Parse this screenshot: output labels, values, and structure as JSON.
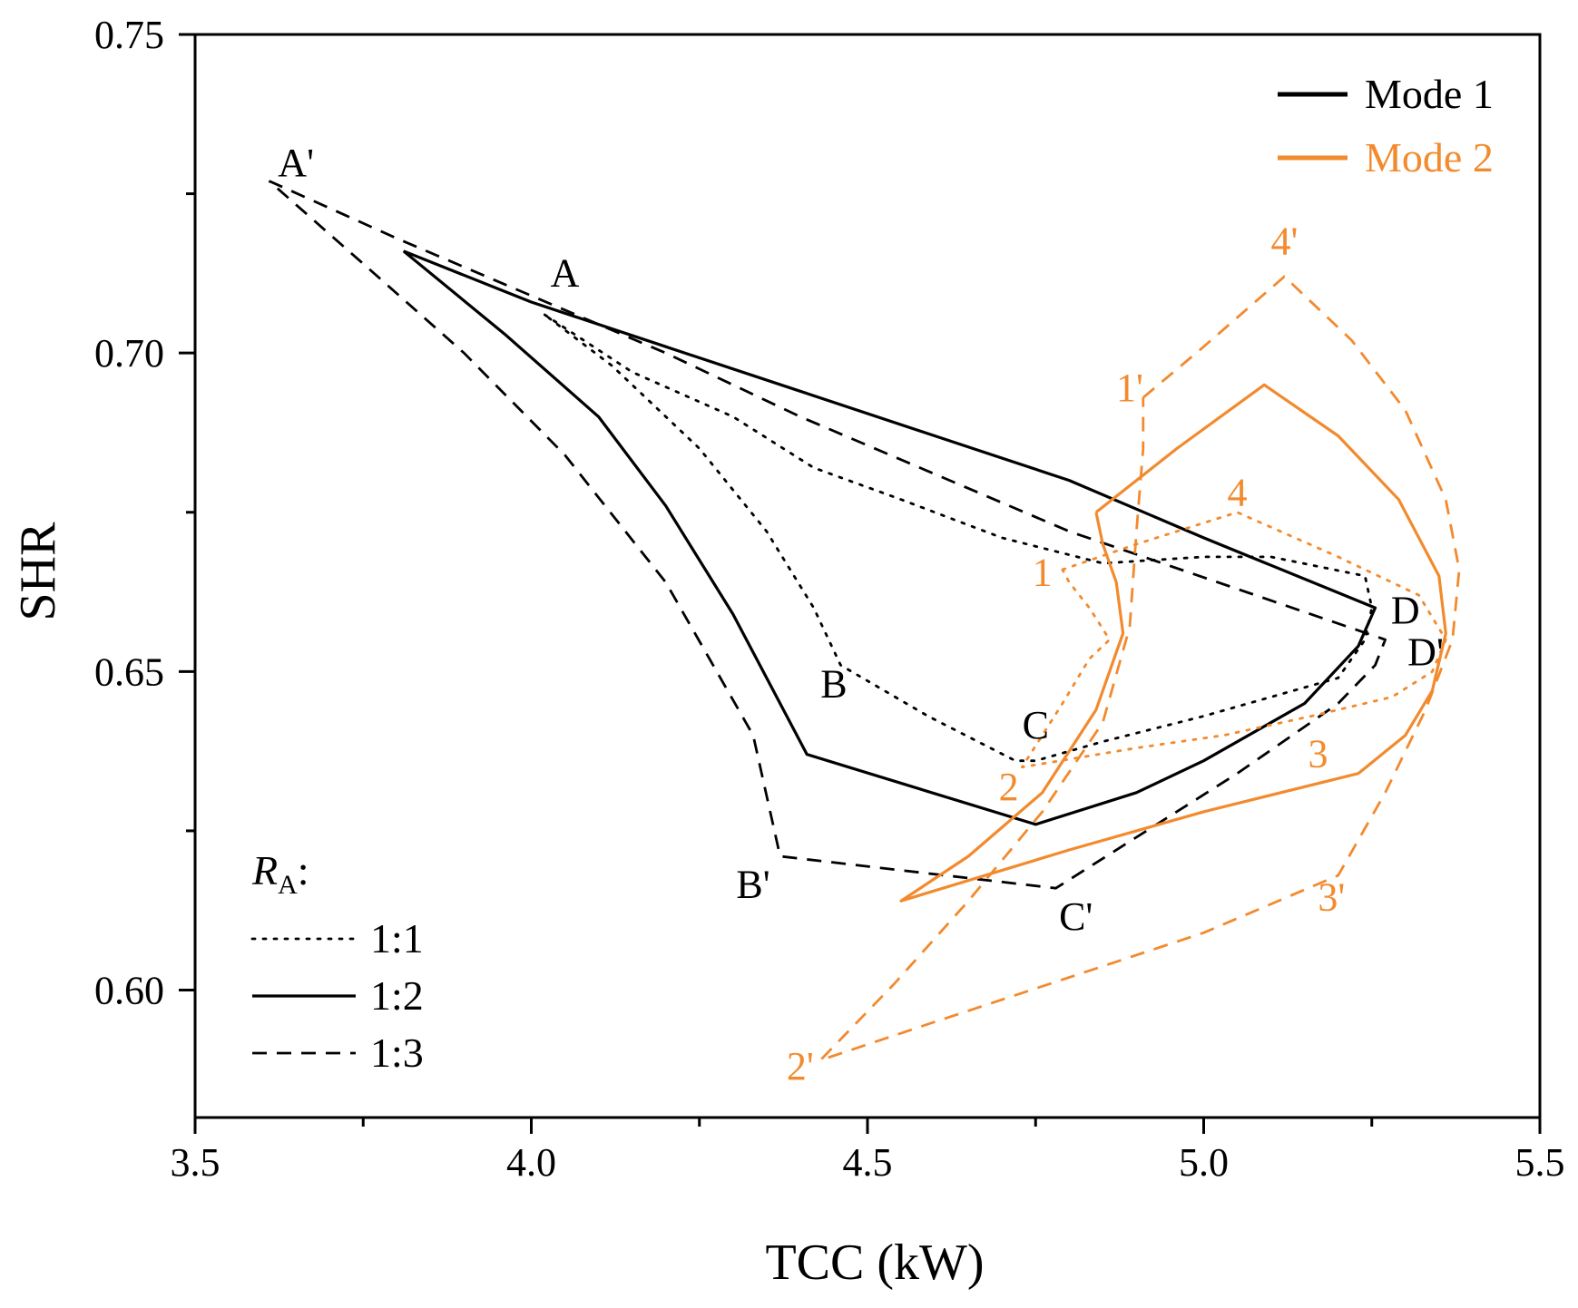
{
  "chart_data": {
    "type": "line",
    "title": "",
    "xlabel": "TCC (kW)",
    "ylabel": "SHR",
    "xlim": [
      3.5,
      5.5
    ],
    "ylim": [
      0.58,
      0.75
    ],
    "xticks": [
      3.5,
      4.0,
      4.5,
      5.0,
      5.5
    ],
    "xtick_labels": [
      "3.5",
      "4.0",
      "4.5",
      "5.0",
      "5.5"
    ],
    "xminor": [
      3.75,
      4.25,
      4.75,
      5.25
    ],
    "yticks": [
      0.6,
      0.65,
      0.7,
      0.75
    ],
    "ytick_labels": [
      "0.60",
      "0.65",
      "0.70",
      "0.75"
    ],
    "grid": false,
    "colors": {
      "mode1": "#000000",
      "mode2": "#f28a2e"
    },
    "legend_modes": [
      {
        "label": "Mode 1",
        "color": "#000000"
      },
      {
        "label": "Mode 2",
        "color": "#f28a2e"
      }
    ],
    "legend_ra": {
      "title_main": "R",
      "title_sub": "A",
      "title_suffix": ":",
      "items": [
        {
          "label": "1:1",
          "style": "dotted"
        },
        {
          "label": "1:2",
          "style": "solid"
        },
        {
          "label": "1:3",
          "style": "dashed"
        }
      ]
    },
    "series": [
      {
        "name": "Mode 1, 1:1",
        "mode": 1,
        "ratio": "1:1",
        "style": "dotted",
        "points": [
          [
            4.02,
            0.706
          ],
          [
            4.15,
            0.697
          ],
          [
            4.3,
            0.69
          ],
          [
            4.42,
            0.682
          ],
          [
            4.55,
            0.677
          ],
          [
            4.7,
            0.671
          ],
          [
            4.85,
            0.667
          ],
          [
            5.0,
            0.668
          ],
          [
            5.1,
            0.668
          ],
          [
            5.24,
            0.665
          ],
          [
            5.25,
            0.66
          ],
          [
            5.24,
            0.655
          ],
          [
            5.2,
            0.649
          ],
          [
            5.1,
            0.646
          ],
          [
            5.0,
            0.643
          ],
          [
            4.85,
            0.639
          ],
          [
            4.75,
            0.636
          ],
          [
            4.72,
            0.636
          ],
          [
            4.59,
            0.643
          ],
          [
            4.46,
            0.651
          ],
          [
            4.42,
            0.66
          ],
          [
            4.35,
            0.672
          ],
          [
            4.25,
            0.685
          ],
          [
            4.12,
            0.698
          ],
          [
            4.02,
            0.706
          ]
        ]
      },
      {
        "name": "Mode 1, 1:2",
        "mode": 1,
        "ratio": "1:2",
        "style": "solid",
        "points": [
          [
            3.81,
            0.716
          ],
          [
            4.0,
            0.708
          ],
          [
            4.2,
            0.701
          ],
          [
            4.4,
            0.694
          ],
          [
            4.6,
            0.687
          ],
          [
            4.8,
            0.68
          ],
          [
            5.0,
            0.671
          ],
          [
            5.255,
            0.66
          ],
          [
            5.23,
            0.654
          ],
          [
            5.15,
            0.645
          ],
          [
            5.0,
            0.636
          ],
          [
            4.9,
            0.631
          ],
          [
            4.75,
            0.626
          ],
          [
            4.41,
            0.637
          ],
          [
            4.3,
            0.659
          ],
          [
            4.2,
            0.676
          ],
          [
            4.1,
            0.69
          ],
          [
            3.96,
            0.703
          ],
          [
            3.81,
            0.716
          ]
        ]
      },
      {
        "name": "Mode 1, 1:3",
        "mode": 1,
        "ratio": "1:3",
        "style": "dashed",
        "points": [
          [
            3.61,
            0.727
          ],
          [
            3.8,
            0.718
          ],
          [
            4.0,
            0.709
          ],
          [
            4.2,
            0.7
          ],
          [
            4.4,
            0.69
          ],
          [
            4.6,
            0.681
          ],
          [
            4.8,
            0.672
          ],
          [
            5.27,
            0.655
          ],
          [
            5.255,
            0.651
          ],
          [
            5.2,
            0.645
          ],
          [
            5.05,
            0.634
          ],
          [
            4.9,
            0.624
          ],
          [
            4.78,
            0.616
          ],
          [
            4.37,
            0.621
          ],
          [
            4.33,
            0.64
          ],
          [
            4.2,
            0.664
          ],
          [
            4.05,
            0.684
          ],
          [
            3.9,
            0.7
          ],
          [
            3.75,
            0.714
          ],
          [
            3.61,
            0.727
          ]
        ]
      },
      {
        "name": "Mode 2, 1:1",
        "mode": 2,
        "ratio": "1:1",
        "style": "dotted",
        "points": [
          [
            4.79,
            0.666
          ],
          [
            4.9,
            0.67
          ],
          [
            5.05,
            0.675
          ],
          [
            5.2,
            0.668
          ],
          [
            5.32,
            0.662
          ],
          [
            5.36,
            0.655
          ],
          [
            5.34,
            0.65
          ],
          [
            5.28,
            0.646
          ],
          [
            5.16,
            0.643
          ],
          [
            5.03,
            0.64
          ],
          [
            4.9,
            0.638
          ],
          [
            4.73,
            0.635
          ],
          [
            4.79,
            0.645
          ],
          [
            4.83,
            0.652
          ],
          [
            4.86,
            0.655
          ],
          [
            4.83,
            0.66
          ],
          [
            4.8,
            0.664
          ],
          [
            4.79,
            0.666
          ]
        ]
      },
      {
        "name": "Mode 2, 1:2",
        "mode": 2,
        "ratio": "1:2",
        "style": "solid",
        "points": [
          [
            4.84,
            0.675
          ],
          [
            4.96,
            0.685
          ],
          [
            5.09,
            0.695
          ],
          [
            5.2,
            0.687
          ],
          [
            5.29,
            0.677
          ],
          [
            5.35,
            0.665
          ],
          [
            5.36,
            0.656
          ],
          [
            5.34,
            0.647
          ],
          [
            5.3,
            0.64
          ],
          [
            5.23,
            0.634
          ],
          [
            5.0,
            0.628
          ],
          [
            4.8,
            0.622
          ],
          [
            4.55,
            0.614
          ],
          [
            4.65,
            0.621
          ],
          [
            4.76,
            0.631
          ],
          [
            4.84,
            0.644
          ],
          [
            4.88,
            0.656
          ],
          [
            4.87,
            0.664
          ],
          [
            4.85,
            0.67
          ],
          [
            4.84,
            0.675
          ]
        ]
      },
      {
        "name": "Mode 2, 1:3",
        "mode": 2,
        "ratio": "1:3",
        "style": "dashed",
        "points": [
          [
            4.91,
            0.693
          ],
          [
            5.0,
            0.701
          ],
          [
            5.12,
            0.712
          ],
          [
            5.22,
            0.702
          ],
          [
            5.3,
            0.691
          ],
          [
            5.36,
            0.677
          ],
          [
            5.38,
            0.666
          ],
          [
            5.37,
            0.655
          ],
          [
            5.33,
            0.644
          ],
          [
            5.27,
            0.631
          ],
          [
            5.2,
            0.618
          ],
          [
            5.0,
            0.609
          ],
          [
            4.8,
            0.602
          ],
          [
            4.6,
            0.595
          ],
          [
            4.43,
            0.589
          ],
          [
            4.54,
            0.601
          ],
          [
            4.65,
            0.614
          ],
          [
            4.76,
            0.628
          ],
          [
            4.85,
            0.642
          ],
          [
            4.89,
            0.657
          ],
          [
            4.9,
            0.672
          ],
          [
            4.91,
            0.685
          ],
          [
            4.91,
            0.693
          ]
        ]
      }
    ],
    "annotations": [
      {
        "text": "A'",
        "x": 3.65,
        "y": 0.7278,
        "color": "mode1"
      },
      {
        "text": "A",
        "x": 4.05,
        "y": 0.7105,
        "color": "mode1"
      },
      {
        "text": "B",
        "x": 4.45,
        "y": 0.646,
        "color": "mode1"
      },
      {
        "text": "B'",
        "x": 4.33,
        "y": 0.6145,
        "color": "mode1"
      },
      {
        "text": "C",
        "x": 4.75,
        "y": 0.6395,
        "color": "mode1"
      },
      {
        "text": "C'",
        "x": 4.81,
        "y": 0.6095,
        "color": "mode1"
      },
      {
        "text": "D",
        "x": 5.3,
        "y": 0.6575,
        "color": "mode1"
      },
      {
        "text": "D'",
        "x": 5.33,
        "y": 0.651,
        "color": "mode1"
      },
      {
        "text": "1",
        "x": 4.76,
        "y": 0.6635,
        "color": "mode2"
      },
      {
        "text": "2",
        "x": 4.71,
        "y": 0.6298,
        "color": "mode2"
      },
      {
        "text": "3",
        "x": 5.17,
        "y": 0.635,
        "color": "mode2"
      },
      {
        "text": "4",
        "x": 5.05,
        "y": 0.676,
        "color": "mode2"
      },
      {
        "text": "1'",
        "x": 4.89,
        "y": 0.6925,
        "color": "mode2"
      },
      {
        "text": "2'",
        "x": 4.4,
        "y": 0.586,
        "color": "mode2"
      },
      {
        "text": "3'",
        "x": 5.19,
        "y": 0.6125,
        "color": "mode2"
      },
      {
        "text": "4'",
        "x": 5.12,
        "y": 0.7155,
        "color": "mode2"
      }
    ]
  }
}
